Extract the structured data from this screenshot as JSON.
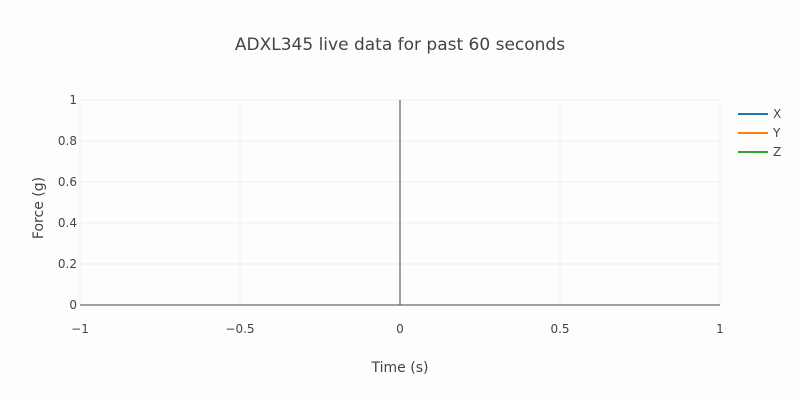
{
  "chart_data": {
    "type": "line",
    "title": "ADXL345 live data for past 60 seconds",
    "xlabel": "Time (s)",
    "ylabel": "Force (g)",
    "xlim": [
      -1,
      1
    ],
    "ylim": [
      0,
      1
    ],
    "x_ticks": [
      "−1",
      "−0.5",
      "0",
      "0.5",
      "1"
    ],
    "x_tick_values": [
      -1,
      -0.5,
      0,
      0.5,
      1
    ],
    "y_ticks": [
      "0",
      "0.2",
      "0.4",
      "0.6",
      "0.8",
      "1"
    ],
    "y_tick_values": [
      0,
      0.2,
      0.4,
      0.6,
      0.8,
      1
    ],
    "grid": true,
    "legend_position": "top-right",
    "series": [
      {
        "name": "X",
        "color": "#1f77b4",
        "x": [],
        "y": []
      },
      {
        "name": "Y",
        "color": "#ff7f0e",
        "x": [],
        "y": []
      },
      {
        "name": "Z",
        "color": "#2ca02c",
        "x": [],
        "y": []
      }
    ]
  }
}
